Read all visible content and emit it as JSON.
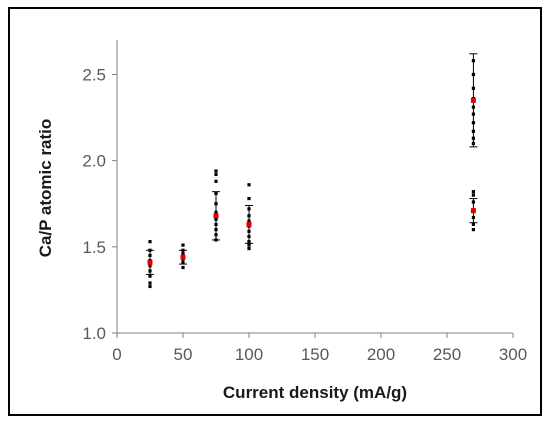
{
  "chart_data": {
    "type": "scatter",
    "title": "",
    "xlabel": "Current density (mA/g)",
    "ylabel": "Ca/P atomic ratio",
    "xlim": [
      0,
      300
    ],
    "ylim": [
      1.0,
      2.7
    ],
    "xticks": [
      "0",
      "50",
      "100",
      "150",
      "200",
      "250",
      "300"
    ],
    "yticks": [
      "1.0",
      "1.5",
      "2.0",
      "2.5"
    ],
    "grid": false,
    "legend": "none",
    "colors": {
      "individual": "#000000",
      "mean": "#e00000",
      "errorbar": "#000000",
      "border": "#000000",
      "axis": "#808080"
    },
    "series": [
      {
        "role": "individual",
        "points": [
          {
            "x": 25,
            "y": 1.27
          },
          {
            "x": 25,
            "y": 1.29
          },
          {
            "x": 25,
            "y": 1.33
          },
          {
            "x": 25,
            "y": 1.36
          },
          {
            "x": 25,
            "y": 1.39
          },
          {
            "x": 25,
            "y": 1.42
          },
          {
            "x": 25,
            "y": 1.45
          },
          {
            "x": 25,
            "y": 1.48
          },
          {
            "x": 25,
            "y": 1.53
          },
          {
            "x": 50,
            "y": 1.38
          },
          {
            "x": 50,
            "y": 1.41
          },
          {
            "x": 50,
            "y": 1.43
          },
          {
            "x": 50,
            "y": 1.46
          },
          {
            "x": 50,
            "y": 1.48
          },
          {
            "x": 50,
            "y": 1.51
          },
          {
            "x": 75,
            "y": 1.54
          },
          {
            "x": 75,
            "y": 1.57
          },
          {
            "x": 75,
            "y": 1.6
          },
          {
            "x": 75,
            "y": 1.63
          },
          {
            "x": 75,
            "y": 1.66
          },
          {
            "x": 75,
            "y": 1.7
          },
          {
            "x": 75,
            "y": 1.75
          },
          {
            "x": 75,
            "y": 1.81
          },
          {
            "x": 75,
            "y": 1.88
          },
          {
            "x": 75,
            "y": 1.92
          },
          {
            "x": 75,
            "y": 1.94
          },
          {
            "x": 100,
            "y": 1.49
          },
          {
            "x": 100,
            "y": 1.51
          },
          {
            "x": 100,
            "y": 1.53
          },
          {
            "x": 100,
            "y": 1.56
          },
          {
            "x": 100,
            "y": 1.59
          },
          {
            "x": 100,
            "y": 1.62
          },
          {
            "x": 100,
            "y": 1.65
          },
          {
            "x": 100,
            "y": 1.68
          },
          {
            "x": 100,
            "y": 1.72
          },
          {
            "x": 100,
            "y": 1.78
          },
          {
            "x": 100,
            "y": 1.86
          },
          {
            "x": 270,
            "y": 1.6
          },
          {
            "x": 270,
            "y": 1.63
          },
          {
            "x": 270,
            "y": 1.67
          },
          {
            "x": 270,
            "y": 1.71
          },
          {
            "x": 270,
            "y": 1.76
          },
          {
            "x": 270,
            "y": 1.8
          },
          {
            "x": 270,
            "y": 1.82
          },
          {
            "x": 270,
            "y": 2.1
          },
          {
            "x": 270,
            "y": 2.13
          },
          {
            "x": 270,
            "y": 2.17
          },
          {
            "x": 270,
            "y": 2.22
          },
          {
            "x": 270,
            "y": 2.27
          },
          {
            "x": 270,
            "y": 2.31
          },
          {
            "x": 270,
            "y": 2.36
          },
          {
            "x": 270,
            "y": 2.42
          },
          {
            "x": 270,
            "y": 2.5
          },
          {
            "x": 270,
            "y": 2.58
          }
        ]
      },
      {
        "role": "mean",
        "points": [
          {
            "x": 25,
            "y": 1.41,
            "err": 0.07
          },
          {
            "x": 50,
            "y": 1.44,
            "err": 0.04
          },
          {
            "x": 75,
            "y": 1.68,
            "err": 0.14
          },
          {
            "x": 100,
            "y": 1.63,
            "err": 0.11
          },
          {
            "x": 270,
            "y": 1.71,
            "err": 0.07
          },
          {
            "x": 270,
            "y": 2.35,
            "err": 0.27
          }
        ]
      }
    ]
  }
}
